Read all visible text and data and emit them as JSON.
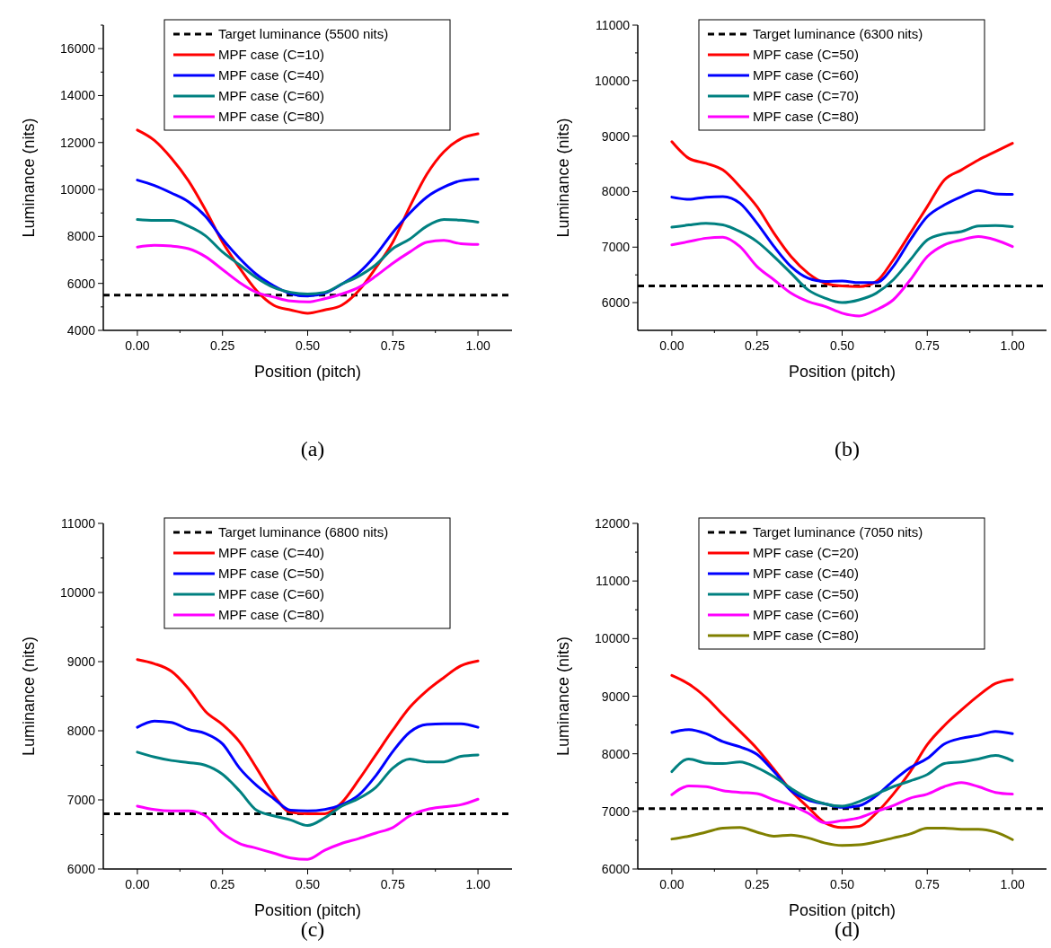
{
  "chart_data": [
    {
      "type": "line",
      "title": "(a)",
      "xlabel": "Position (pitch)",
      "ylabel": "Luminance (nits)",
      "legend": "top",
      "line_style": "solid",
      "marker": "none",
      "grid": false,
      "x": [
        0,
        0.05,
        0.1,
        0.15,
        0.2,
        0.25,
        0.3,
        0.35,
        0.4,
        0.45,
        0.5,
        0.55,
        0.6,
        0.65,
        0.7,
        0.75,
        0.8,
        0.85,
        0.9,
        0.95,
        1
      ],
      "xlim": [
        -0.1,
        1.1
      ],
      "xticks": [
        {
          "value": 0,
          "label": "0.00"
        },
        {
          "value": 0.125,
          "label": null
        },
        {
          "value": 0.25,
          "label": "0.25"
        },
        {
          "value": 0.375,
          "label": null
        },
        {
          "value": 0.5,
          "label": "0.50"
        },
        {
          "value": 0.625,
          "label": null
        },
        {
          "value": 0.75,
          "label": "0.75"
        },
        {
          "value": 0.875,
          "label": null
        },
        {
          "value": 1,
          "label": "1.00"
        }
      ],
      "ylim": [
        4000,
        17000
      ],
      "yticks": [
        4000,
        {
          "value": 5000,
          "label": null
        },
        6000,
        {
          "value": 7000,
          "label": null
        },
        8000,
        {
          "value": 9000,
          "label": null
        },
        10000,
        {
          "value": 11000,
          "label": null
        },
        12000,
        {
          "value": 13000,
          "label": null
        },
        14000,
        {
          "value": 15000,
          "label": null
        },
        16000,
        {
          "value": 17000,
          "label": null
        }
      ],
      "ref_lines": [
        {
          "axis": "y",
          "value": 5500,
          "label": "Target luminance (5500 nits)",
          "color": "#000000",
          "line_style": "dashed"
        }
      ],
      "series": [
        {
          "name": "MPF case (C=10)",
          "color": "#ff0000",
          "values": [
            12530,
            12090,
            11330,
            10370,
            9130,
            7760,
            6660,
            5690,
            5070,
            4870,
            4730,
            4870,
            5070,
            5690,
            6660,
            7760,
            9270,
            10650,
            11610,
            12160,
            12370
          ]
        },
        {
          "name": "MPF case (C=40)",
          "color": "#0000ff",
          "values": [
            10400,
            10170,
            9850,
            9480,
            8860,
            7890,
            7070,
            6380,
            5900,
            5560,
            5460,
            5580,
            5970,
            6450,
            7210,
            8170,
            9000,
            9680,
            10100,
            10370,
            10440
          ]
        },
        {
          "name": "MPF case (C=60)",
          "color": "#008080",
          "values": [
            8720,
            8680,
            8680,
            8440,
            8030,
            7340,
            6790,
            6240,
            5830,
            5620,
            5550,
            5620,
            5970,
            6310,
            6790,
            7480,
            7890,
            8440,
            8720,
            8690,
            8610
          ]
        },
        {
          "name": "MPF case (C=80)",
          "color": "#ff00ff",
          "values": [
            7550,
            7620,
            7590,
            7480,
            7140,
            6590,
            6040,
            5620,
            5420,
            5250,
            5210,
            5350,
            5550,
            5830,
            6310,
            6860,
            7340,
            7760,
            7830,
            7690,
            7660
          ]
        }
      ]
    },
    {
      "type": "line",
      "title": "(b)",
      "xlabel": "Position (pitch)",
      "ylabel": "Luminance (nits)",
      "legend": "top",
      "line_style": "solid",
      "marker": "none",
      "grid": false,
      "x": [
        0,
        0.05,
        0.1,
        0.15,
        0.2,
        0.25,
        0.3,
        0.35,
        0.4,
        0.45,
        0.5,
        0.55,
        0.6,
        0.65,
        0.7,
        0.75,
        0.8,
        0.85,
        0.9,
        0.95,
        1
      ],
      "xlim": [
        -0.1,
        1.1
      ],
      "xticks": [
        {
          "value": 0,
          "label": "0.00"
        },
        {
          "value": 0.125,
          "label": null
        },
        {
          "value": 0.25,
          "label": "0.25"
        },
        {
          "value": 0.375,
          "label": null
        },
        {
          "value": 0.5,
          "label": "0.50"
        },
        {
          "value": 0.625,
          "label": null
        },
        {
          "value": 0.75,
          "label": "0.75"
        },
        {
          "value": 0.875,
          "label": null
        },
        {
          "value": 1,
          "label": "1.00"
        }
      ],
      "ylim": [
        5500,
        11000
      ],
      "yticks": [
        6000,
        {
          "value": 6500,
          "label": null
        },
        7000,
        {
          "value": 7500,
          "label": null
        },
        8000,
        {
          "value": 8500,
          "label": null
        },
        9000,
        {
          "value": 9500,
          "label": null
        },
        10000,
        {
          "value": 10500,
          "label": null
        },
        11000
      ],
      "ref_lines": [
        {
          "axis": "y",
          "value": 6300,
          "label": "Target luminance (6300 nits)",
          "color": "#000000",
          "line_style": "dashed"
        }
      ],
      "series": [
        {
          "name": "MPF case (C=50)",
          "color": "#ff0000",
          "values": [
            8900,
            8600,
            8510,
            8390,
            8090,
            7730,
            7250,
            6830,
            6530,
            6350,
            6300,
            6290,
            6380,
            6770,
            7250,
            7730,
            8210,
            8390,
            8570,
            8720,
            8870
          ]
        },
        {
          "name": "MPF case (C=60)",
          "color": "#0000ff",
          "values": [
            7900,
            7860,
            7900,
            7910,
            7790,
            7430,
            7010,
            6650,
            6440,
            6380,
            6390,
            6360,
            6360,
            6650,
            7130,
            7550,
            7760,
            7910,
            8020,
            7960,
            7950
          ]
        },
        {
          "name": "MPF case (C=70)",
          "color": "#008080",
          "values": [
            7360,
            7400,
            7430,
            7400,
            7280,
            7100,
            6830,
            6530,
            6230,
            6080,
            6000,
            6050,
            6170,
            6410,
            6770,
            7130,
            7240,
            7280,
            7380,
            7390,
            7370
          ]
        },
        {
          "name": "MPF case (C=80)",
          "color": "#ff00ff",
          "values": [
            7040,
            7100,
            7160,
            7180,
            7010,
            6650,
            6410,
            6170,
            6020,
            5930,
            5810,
            5760,
            5870,
            6050,
            6410,
            6830,
            7040,
            7130,
            7190,
            7130,
            7010
          ]
        }
      ]
    },
    {
      "type": "line",
      "title": "(c)",
      "xlabel": "Position (pitch)",
      "ylabel": "Luminance (nits)",
      "legend": "top",
      "line_style": "solid",
      "marker": "none",
      "grid": false,
      "x": [
        0,
        0.05,
        0.1,
        0.15,
        0.2,
        0.25,
        0.3,
        0.35,
        0.4,
        0.45,
        0.5,
        0.55,
        0.6,
        0.65,
        0.7,
        0.75,
        0.8,
        0.85,
        0.9,
        0.95,
        1
      ],
      "xlim": [
        -0.1,
        1.1
      ],
      "xticks": [
        {
          "value": 0,
          "label": "0.00"
        },
        {
          "value": 0.125,
          "label": null
        },
        {
          "value": 0.25,
          "label": "0.25"
        },
        {
          "value": 0.375,
          "label": null
        },
        {
          "value": 0.5,
          "label": "0.50"
        },
        {
          "value": 0.625,
          "label": null
        },
        {
          "value": 0.75,
          "label": "0.75"
        },
        {
          "value": 0.875,
          "label": null
        },
        {
          "value": 1,
          "label": "1.00"
        }
      ],
      "ylim": [
        6000,
        11000
      ],
      "yticks": [
        6000,
        {
          "value": 6500,
          "label": null
        },
        7000,
        {
          "value": 7500,
          "label": null
        },
        8000,
        {
          "value": 8500,
          "label": null
        },
        9000,
        {
          "value": 9500,
          "label": null
        },
        10000,
        {
          "value": 10500,
          "label": null
        },
        11000
      ],
      "ref_lines": [
        {
          "axis": "y",
          "value": 6800,
          "label": "Target luminance (6800 nits)",
          "color": "#000000",
          "line_style": "dashed"
        }
      ],
      "series": [
        {
          "name": "MPF case (C=40)",
          "color": "#ff0000",
          "values": [
            9030,
            8970,
            8860,
            8610,
            8280,
            8090,
            7840,
            7460,
            7070,
            6820,
            6800,
            6800,
            6960,
            7290,
            7650,
            8010,
            8340,
            8580,
            8770,
            8940,
            9010
          ]
        },
        {
          "name": "MPF case (C=50)",
          "color": "#0000ff",
          "values": [
            8050,
            8140,
            8120,
            8020,
            7960,
            7810,
            7460,
            7210,
            7020,
            6850,
            6840,
            6860,
            6930,
            7070,
            7350,
            7700,
            7980,
            8090,
            8100,
            8100,
            8050
          ]
        },
        {
          "name": "MPF case (C=60)",
          "color": "#008080",
          "values": [
            7690,
            7620,
            7570,
            7540,
            7500,
            7370,
            7130,
            6850,
            6770,
            6710,
            6630,
            6740,
            6910,
            7020,
            7180,
            7460,
            7590,
            7550,
            7550,
            7630,
            7650
          ]
        },
        {
          "name": "MPF case (C=80)",
          "color": "#ff00ff",
          "values": [
            6910,
            6860,
            6840,
            6840,
            6770,
            6520,
            6370,
            6300,
            6230,
            6160,
            6140,
            6270,
            6370,
            6440,
            6520,
            6600,
            6770,
            6860,
            6900,
            6930,
            7010
          ]
        }
      ]
    },
    {
      "type": "line",
      "title": "(d)",
      "xlabel": "Position (pitch)",
      "ylabel": "Luminance (nits)",
      "legend": "top",
      "line_style": "solid",
      "marker": "none",
      "grid": false,
      "x": [
        0,
        0.05,
        0.1,
        0.15,
        0.2,
        0.25,
        0.3,
        0.35,
        0.4,
        0.45,
        0.5,
        0.55,
        0.6,
        0.65,
        0.7,
        0.75,
        0.8,
        0.85,
        0.9,
        0.95,
        1
      ],
      "xlim": [
        -0.1,
        1.1
      ],
      "xticks": [
        {
          "value": 0,
          "label": "0.00"
        },
        {
          "value": 0.125,
          "label": null
        },
        {
          "value": 0.25,
          "label": "0.25"
        },
        {
          "value": 0.375,
          "label": null
        },
        {
          "value": 0.5,
          "label": "0.50"
        },
        {
          "value": 0.625,
          "label": null
        },
        {
          "value": 0.75,
          "label": "0.75"
        },
        {
          "value": 0.875,
          "label": null
        },
        {
          "value": 1,
          "label": "1.00"
        }
      ],
      "ylim": [
        6000,
        12000
      ],
      "yticks": [
        6000,
        {
          "value": 6500,
          "label": null
        },
        7000,
        {
          "value": 7500,
          "label": null
        },
        8000,
        {
          "value": 8500,
          "label": null
        },
        9000,
        {
          "value": 9500,
          "label": null
        },
        10000,
        {
          "value": 10500,
          "label": null
        },
        11000,
        {
          "value": 11500,
          "label": null
        },
        12000
      ],
      "ref_lines": [
        {
          "axis": "y",
          "value": 7050,
          "label": "Target luminance (7050 nits)",
          "color": "#000000",
          "line_style": "dashed"
        }
      ],
      "series": [
        {
          "name": "MPF case (C=20)",
          "color": "#ff0000",
          "values": [
            9360,
            9210,
            8980,
            8680,
            8390,
            8090,
            7730,
            7360,
            7070,
            6800,
            6720,
            6740,
            6970,
            7300,
            7690,
            8160,
            8490,
            8760,
            9010,
            9220,
            9290
          ]
        },
        {
          "name": "MPF case (C=40)",
          "color": "#0000ff",
          "values": [
            8370,
            8420,
            8350,
            8210,
            8120,
            7990,
            7690,
            7360,
            7200,
            7130,
            7070,
            7100,
            7270,
            7530,
            7760,
            7920,
            8170,
            8270,
            8320,
            8390,
            8350
          ]
        },
        {
          "name": "MPF case (C=50)",
          "color": "#008080",
          "values": [
            7690,
            7910,
            7840,
            7830,
            7860,
            7760,
            7600,
            7400,
            7230,
            7130,
            7090,
            7170,
            7300,
            7430,
            7530,
            7640,
            7830,
            7860,
            7910,
            7970,
            7880
          ]
        },
        {
          "name": "MPF case (C=60)",
          "color": "#ff00ff",
          "values": [
            7290,
            7440,
            7430,
            7360,
            7330,
            7310,
            7200,
            7110,
            6970,
            6800,
            6840,
            6890,
            7000,
            7100,
            7230,
            7300,
            7430,
            7500,
            7430,
            7330,
            7300
          ]
        },
        {
          "name": "MPF case (C=80)",
          "color": "#808000",
          "values": [
            6520,
            6570,
            6640,
            6710,
            6720,
            6640,
            6570,
            6590,
            6540,
            6450,
            6410,
            6420,
            6470,
            6540,
            6610,
            6710,
            6710,
            6690,
            6690,
            6640,
            6510
          ]
        }
      ]
    }
  ]
}
